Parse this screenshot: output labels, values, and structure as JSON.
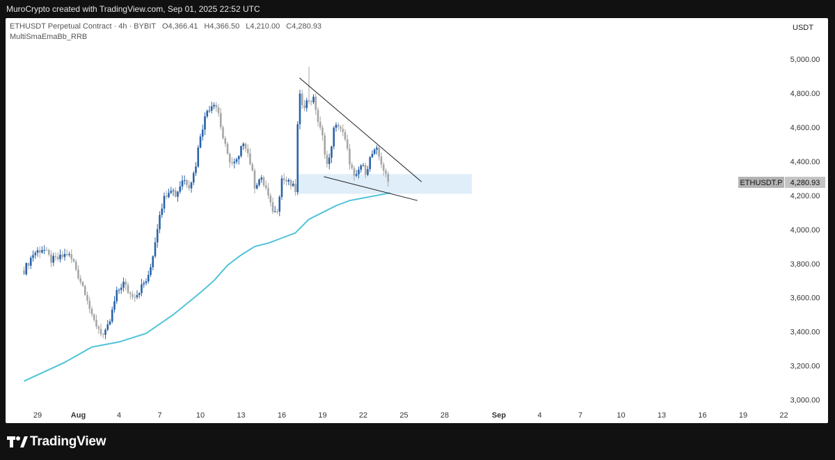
{
  "header": {
    "attribution": "MuroCrypto created with TradingView.com, Sep 01, 2025 22:52 UTC"
  },
  "legend": {
    "symbol_line": "ETHUSDT Perpetual Contract · 4h · BYBIT",
    "open_label": "O",
    "open": "4,366.41",
    "high_label": "H",
    "high": "4,366.50",
    "low_label": "L",
    "low": "4,210.00",
    "close_label": "C",
    "close": "4,280.93",
    "indicator": "MultiSmaEmaBb_RRB"
  },
  "currency": "USDT",
  "price_tag": {
    "symbol": "ETHUSDT.P",
    "value": "4,280.93"
  },
  "footer": {
    "brand": "TradingView"
  },
  "colors": {
    "up": "#2962a8",
    "down": "#a6a6a6",
    "ma": "#4ec3d8",
    "zone": "#dfeef9",
    "trend": "#1a1a1a"
  },
  "chart_data": {
    "type": "candlestick",
    "interval": "4h",
    "y_axis": {
      "ticks": [
        3000,
        3200,
        3400,
        3600,
        3800,
        4000,
        4200,
        4400,
        4600,
        4800,
        5000
      ],
      "labels": [
        "3,000.00",
        "3,200.00",
        "3,400.00",
        "3,600.00",
        "3,800.00",
        "4,000.00",
        "4,200.00",
        "4,400.00",
        "4,600.00",
        "4,800.00",
        "5,000.00"
      ],
      "ylim": [
        2960,
        5060
      ]
    },
    "x_axis": {
      "labels": [
        "29",
        "Aug",
        "4",
        "7",
        "10",
        "13",
        "16",
        "19",
        "22",
        "25",
        "28",
        "Sep",
        "4",
        "7",
        "10",
        "13",
        "16",
        "19",
        "22"
      ],
      "bold": [
        "Aug",
        "Sep"
      ]
    },
    "day_index": [
      -3,
      0,
      3,
      6,
      9,
      12,
      15,
      18,
      21,
      24,
      27,
      31,
      34,
      37,
      40,
      43,
      46,
      49,
      52
    ],
    "price_path": [
      [
        -4.0,
        3760
      ],
      [
        -3.3,
        3860
      ],
      [
        -2.6,
        3890
      ],
      [
        -2.0,
        3820
      ],
      [
        -1.4,
        3830
      ],
      [
        -0.8,
        3860
      ],
      [
        -0.3,
        3800
      ],
      [
        0.0,
        3730
      ],
      [
        0.6,
        3620
      ],
      [
        1.0,
        3480
      ],
      [
        1.5,
        3420
      ],
      [
        1.9,
        3370
      ],
      [
        2.3,
        3450
      ],
      [
        2.8,
        3620
      ],
      [
        3.3,
        3690
      ],
      [
        3.8,
        3620
      ],
      [
        4.3,
        3620
      ],
      [
        4.8,
        3680
      ],
      [
        5.2,
        3720
      ],
      [
        5.6,
        3900
      ],
      [
        6.0,
        4100
      ],
      [
        6.4,
        4200
      ],
      [
        6.8,
        4250
      ],
      [
        7.2,
        4200
      ],
      [
        7.7,
        4300
      ],
      [
        8.2,
        4260
      ],
      [
        8.6,
        4350
      ],
      [
        9.0,
        4560
      ],
      [
        9.5,
        4700
      ],
      [
        10.0,
        4750
      ],
      [
        10.3,
        4700
      ],
      [
        10.6,
        4560
      ],
      [
        11.0,
        4430
      ],
      [
        11.4,
        4380
      ],
      [
        11.8,
        4410
      ],
      [
        12.2,
        4530
      ],
      [
        12.6,
        4420
      ],
      [
        13.0,
        4260
      ],
      [
        13.4,
        4300
      ],
      [
        13.8,
        4250
      ],
      [
        14.2,
        4130
      ],
      [
        14.6,
        4090
      ],
      [
        15.0,
        4300
      ],
      [
        15.4,
        4280
      ],
      [
        15.8,
        4250
      ],
      [
        16.1,
        4220
      ],
      [
        16.2,
        4800
      ],
      [
        16.6,
        4730
      ],
      [
        17.0,
        4760
      ],
      [
        17.4,
        4760
      ],
      [
        17.7,
        4620
      ],
      [
        18.0,
        4540
      ],
      [
        18.4,
        4350
      ],
      [
        18.8,
        4580
      ],
      [
        19.2,
        4620
      ],
      [
        19.6,
        4540
      ],
      [
        20.0,
        4400
      ],
      [
        20.4,
        4280
      ],
      [
        20.8,
        4380
      ],
      [
        21.2,
        4340
      ],
      [
        21.6,
        4440
      ],
      [
        22.0,
        4460
      ],
      [
        22.4,
        4380
      ],
      [
        22.7,
        4300
      ],
      [
        22.9,
        4280.93
      ]
    ],
    "high_spike": {
      "day": 17.0,
      "value": 4955
    },
    "ema": [
      [
        -4.0,
        3110
      ],
      [
        -1.0,
        3220
      ],
      [
        1.0,
        3310
      ],
      [
        3.0,
        3340
      ],
      [
        5.0,
        3390
      ],
      [
        7.0,
        3500
      ],
      [
        9.0,
        3630
      ],
      [
        10.0,
        3700
      ],
      [
        11.0,
        3790
      ],
      [
        12.0,
        3850
      ],
      [
        13.0,
        3900
      ],
      [
        14.0,
        3920
      ],
      [
        15.0,
        3950
      ],
      [
        16.0,
        3980
      ],
      [
        17.0,
        4060
      ],
      [
        18.0,
        4100
      ],
      [
        19.0,
        4140
      ],
      [
        20.0,
        4170
      ],
      [
        21.0,
        4185
      ],
      [
        22.0,
        4200
      ],
      [
        23.0,
        4215
      ]
    ],
    "trendlines": [
      {
        "from": [
          16.3,
          4890
        ],
        "to": [
          25.3,
          4280
        ]
      },
      {
        "from": [
          18.1,
          4310
        ],
        "to": [
          25.0,
          4170
        ]
      }
    ],
    "zone": {
      "from_day": 16.1,
      "to_day": 29.0,
      "low": 4210,
      "high": 4325
    },
    "last_price": 4280.93
  }
}
